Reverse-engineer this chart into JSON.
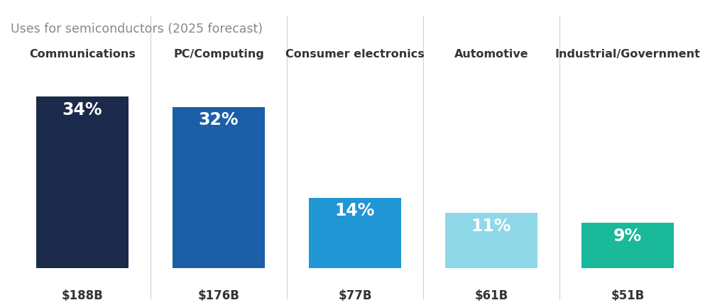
{
  "title": "Uses for semiconductors (2025 forecast)",
  "categories": [
    "Communications",
    "PC/Computing",
    "Consumer electronics",
    "Automotive",
    "Industrial/Government"
  ],
  "values": [
    34,
    32,
    14,
    11,
    9
  ],
  "dollar_labels": [
    "$188B",
    "$176B",
    "$77B",
    "$61B",
    "$51B"
  ],
  "pct_labels": [
    "34%",
    "32%",
    "14%",
    "11%",
    "9%"
  ],
  "bar_colors": [
    "#1b2a4a",
    "#1a5fa8",
    "#2196d4",
    "#8ed8e8",
    "#1ab99a"
  ],
  "background_color": "#ffffff",
  "title_color": "#888888",
  "category_color": "#333333",
  "dollar_color": "#333333",
  "pct_text_color": "#ffffff",
  "divider_color": "#d0d0d0",
  "bar_width": 0.68,
  "title_fontsize": 12.5,
  "category_fontsize": 11.5,
  "pct_fontsize": 17,
  "dollar_fontsize": 12,
  "ylim": [
    0,
    40
  ],
  "figsize": [
    10.0,
    4.31
  ]
}
